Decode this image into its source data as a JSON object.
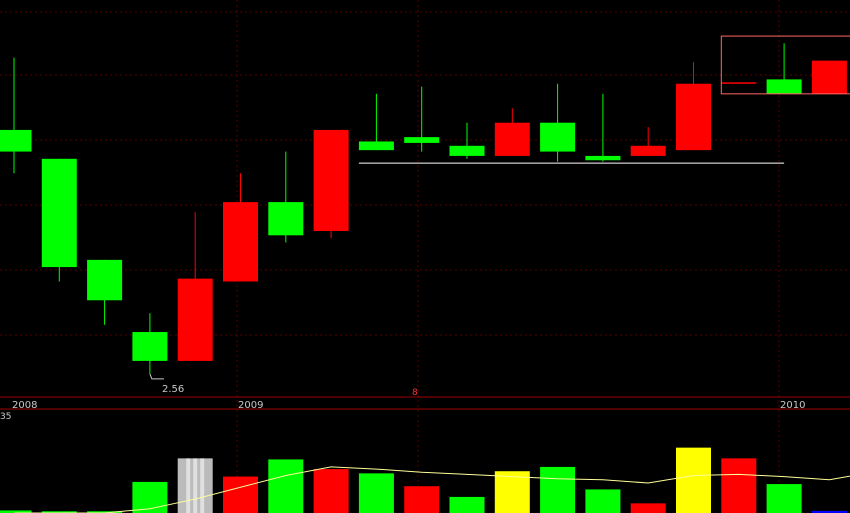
{
  "chart_data": [
    {
      "type": "candlestick",
      "x_labels": [
        "2008",
        "2009",
        "2010"
      ],
      "annotations": [
        {
          "text": "2.56",
          "x_index": 3
        },
        {
          "text": "8"
        }
      ],
      "candles": [
        {
          "i": 0,
          "open": 4.25,
          "close": 4.1,
          "high": 4.75,
          "low": 3.95,
          "color": "#00ff00"
        },
        {
          "i": 1,
          "open": 4.05,
          "close": 3.3,
          "high": 4.05,
          "low": 3.2,
          "color": "#00ff00"
        },
        {
          "i": 2,
          "open": 3.35,
          "close": 3.07,
          "high": 3.35,
          "low": 2.9,
          "color": "#00ff00"
        },
        {
          "i": 3,
          "open": 2.85,
          "close": 2.65,
          "high": 2.98,
          "low": 2.56,
          "color": "#00ff00"
        },
        {
          "i": 4,
          "open": 2.65,
          "close": 3.22,
          "high": 3.68,
          "low": 2.65,
          "color": "#ff0000"
        },
        {
          "i": 5,
          "open": 3.2,
          "close": 3.75,
          "high": 3.95,
          "low": 3.2,
          "color": "#ff0000"
        },
        {
          "i": 6,
          "open": 3.75,
          "close": 3.52,
          "high": 4.1,
          "low": 3.47,
          "color": "#00ff00"
        },
        {
          "i": 7,
          "open": 3.55,
          "close": 4.25,
          "high": 4.25,
          "low": 3.5,
          "color": "#ff0000"
        },
        {
          "i": 8,
          "open": 4.17,
          "close": 4.11,
          "high": 4.5,
          "low": 4.11,
          "color": "#00ff00"
        },
        {
          "i": 9,
          "open": 4.2,
          "close": 4.16,
          "high": 4.55,
          "low": 4.1,
          "color": "#00ff00"
        },
        {
          "i": 10,
          "open": 4.14,
          "close": 4.07,
          "high": 4.3,
          "low": 4.05,
          "color": "#00ff00"
        },
        {
          "i": 11,
          "open": 4.07,
          "close": 4.3,
          "high": 4.4,
          "low": 4.07,
          "color": "#ff0000"
        },
        {
          "i": 12,
          "open": 4.3,
          "close": 4.1,
          "high": 4.57,
          "low": 4.03,
          "color": "#00ff00"
        },
        {
          "i": 13,
          "open": 4.07,
          "close": 4.04,
          "high": 4.5,
          "low": 4.03,
          "color": "#00ff00"
        },
        {
          "i": 14,
          "open": 4.07,
          "close": 4.14,
          "high": 4.27,
          "low": 4.07,
          "color": "#ff0000"
        },
        {
          "i": 15,
          "open": 4.11,
          "close": 4.57,
          "high": 4.72,
          "low": 4.11,
          "color": "#ff0000"
        },
        {
          "i": 16,
          "open": 4.58,
          "close": 4.58,
          "high": 4.58,
          "low": 4.58,
          "color": "#ff0000"
        },
        {
          "i": 17,
          "open": 4.6,
          "close": 4.5,
          "high": 4.85,
          "low": 4.5,
          "color": "#00ff00"
        },
        {
          "i": 18,
          "open": 4.5,
          "close": 4.73,
          "high": 4.73,
          "low": 4.5,
          "color": "#ff0000"
        }
      ],
      "annotation_lines": [
        {
          "kind": "horizontal",
          "value": 4.02,
          "from_index": 8,
          "to_index": 17,
          "color": "#ffffff"
        },
        {
          "kind": "box",
          "from_index": 16,
          "to_index": 18.2,
          "low": 4.5,
          "high": 4.9,
          "color": "#ff6666"
        }
      ],
      "ylim": [
        2.4,
        5.15
      ]
    },
    {
      "type": "bar",
      "axis_label": "35",
      "volumes": [
        {
          "i": 0,
          "value": 1.2,
          "color": "#00ff00"
        },
        {
          "i": 1,
          "value": 0.8,
          "color": "#00ff00"
        },
        {
          "i": 2,
          "value": 0.8,
          "color": "#00ff00"
        },
        {
          "i": 3,
          "value": 14.5,
          "color": "#00ff00"
        },
        {
          "i": 4,
          "value": 25.5,
          "color": "#bbbbbb"
        },
        {
          "i": 5,
          "value": 17.0,
          "color": "#ff0000"
        },
        {
          "i": 6,
          "value": 25.0,
          "color": "#00ff00"
        },
        {
          "i": 7,
          "value": 20.5,
          "color": "#ff0000"
        },
        {
          "i": 8,
          "value": 18.5,
          "color": "#00ff00"
        },
        {
          "i": 9,
          "value": 12.5,
          "color": "#ff0000"
        },
        {
          "i": 10,
          "value": 7.5,
          "color": "#00ff00"
        },
        {
          "i": 11,
          "value": 19.5,
          "color": "#ffff00"
        },
        {
          "i": 12,
          "value": 21.5,
          "color": "#00ff00"
        },
        {
          "i": 13,
          "value": 11.0,
          "color": "#00ff00"
        },
        {
          "i": 14,
          "value": 4.5,
          "color": "#ff0000"
        },
        {
          "i": 15,
          "value": 30.5,
          "color": "#ffff00"
        },
        {
          "i": 16,
          "value": 25.5,
          "color": "#ff0000"
        },
        {
          "i": 17,
          "value": 13.5,
          "color": "#00ff00"
        },
        {
          "i": 18,
          "value": 1.0,
          "color": "#0000ff"
        }
      ],
      "moving_average": [
        {
          "x": 0,
          "value": 0.0
        },
        {
          "x": 2,
          "value": 0.0
        },
        {
          "x": 3,
          "value": 2.0
        },
        {
          "x": 4,
          "value": 6.5
        },
        {
          "x": 5,
          "value": 12.0
        },
        {
          "x": 6,
          "value": 17.5
        },
        {
          "x": 7,
          "value": 21.5
        },
        {
          "x": 8,
          "value": 20.5
        },
        {
          "x": 9,
          "value": 19.0
        },
        {
          "x": 10,
          "value": 18.0
        },
        {
          "x": 11,
          "value": 17.0
        },
        {
          "x": 12,
          "value": 16.0
        },
        {
          "x": 13,
          "value": 15.5
        },
        {
          "x": 14,
          "value": 14.0
        },
        {
          "x": 15,
          "value": 17.5
        },
        {
          "x": 16,
          "value": 18.0
        },
        {
          "x": 17,
          "value": 17.0
        },
        {
          "x": 18,
          "value": 15.5
        },
        {
          "x": 18.8,
          "value": 18.5
        }
      ],
      "ylim": [
        0,
        35
      ]
    }
  ],
  "colors": {
    "background": "#000000",
    "up": "#ff0000",
    "down": "#00ff00",
    "grid": "#5a0000",
    "divider": "#a00000",
    "text": "#c8c8c8",
    "ma_line": "#ffff99"
  }
}
